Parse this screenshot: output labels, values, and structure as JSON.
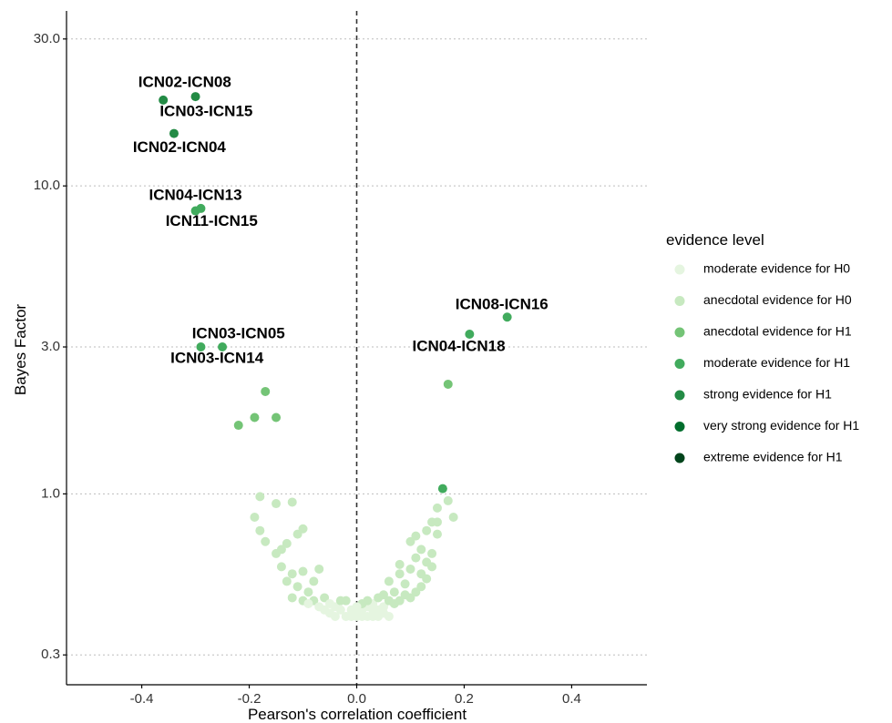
{
  "chart_data": {
    "type": "scatter",
    "xlabel": "Pearson's correlation coefficient",
    "ylabel": "Bayes Factor",
    "xlim": [
      -0.54,
      0.54
    ],
    "ylim": [
      0.24,
      37
    ],
    "y_scale": "log",
    "x_ticks": [
      -0.4,
      -0.2,
      0.0,
      0.2,
      0.4
    ],
    "x_tick_labels": [
      "-0.4",
      "-0.2",
      "0.0",
      "0.2",
      "0.4"
    ],
    "y_ticks": [
      0.3,
      1.0,
      3.0,
      10.0,
      30.0
    ],
    "y_tick_labels": [
      "0.3",
      "1.0",
      "3.0",
      "10.0",
      "30.0"
    ],
    "grid": "horizontal dotted",
    "reference_line": {
      "x": 0,
      "style": "dashed"
    },
    "legend": {
      "title": "evidence level",
      "placement": "right",
      "entries": [
        {
          "key": "mod_h0",
          "label": "moderate evidence for H0",
          "color": "#e5f5e0"
        },
        {
          "key": "anec_h0",
          "label": "anecdotal evidence for H0",
          "color": "#c7e9c0"
        },
        {
          "key": "anec_h1",
          "label": "anecdotal evidence for H1",
          "color": "#74c476"
        },
        {
          "key": "mod_h1",
          "label": "moderate evidence for H1",
          "color": "#41ab5d"
        },
        {
          "key": "strong_h1",
          "label": "strong evidence for H1",
          "color": "#238b45"
        },
        {
          "key": "vstrong_h1",
          "label": "very strong evidence for H1",
          "color": "#006d2c"
        },
        {
          "key": "ext_h1",
          "label": "extreme evidence for H1",
          "color": "#00441b"
        }
      ]
    },
    "points": [
      {
        "x": -0.36,
        "y": 19.0,
        "level": "strong_h1"
      },
      {
        "x": -0.3,
        "y": 19.5,
        "level": "strong_h1"
      },
      {
        "x": -0.34,
        "y": 14.8,
        "level": "strong_h1"
      },
      {
        "x": -0.3,
        "y": 8.3,
        "level": "mod_h1"
      },
      {
        "x": -0.29,
        "y": 8.45,
        "level": "mod_h1"
      },
      {
        "x": -0.29,
        "y": 3.0,
        "level": "mod_h1"
      },
      {
        "x": -0.25,
        "y": 3.0,
        "level": "mod_h1"
      },
      {
        "x": 0.21,
        "y": 3.3,
        "level": "mod_h1"
      },
      {
        "x": 0.28,
        "y": 3.75,
        "level": "mod_h1"
      },
      {
        "x": -0.22,
        "y": 1.67,
        "level": "anec_h1"
      },
      {
        "x": -0.19,
        "y": 1.77,
        "level": "anec_h1"
      },
      {
        "x": -0.17,
        "y": 2.15,
        "level": "anec_h1"
      },
      {
        "x": -0.15,
        "y": 1.77,
        "level": "anec_h1"
      },
      {
        "x": 0.17,
        "y": 2.27,
        "level": "anec_h1"
      },
      {
        "x": 0.16,
        "y": 1.04,
        "level": "mod_h1"
      },
      {
        "x": -0.19,
        "y": 0.84,
        "level": "anec_h0"
      },
      {
        "x": -0.18,
        "y": 0.98,
        "level": "anec_h0"
      },
      {
        "x": -0.15,
        "y": 0.93,
        "level": "anec_h0"
      },
      {
        "x": -0.12,
        "y": 0.94,
        "level": "anec_h0"
      },
      {
        "x": -0.18,
        "y": 0.76,
        "level": "anec_h0"
      },
      {
        "x": -0.17,
        "y": 0.7,
        "level": "anec_h0"
      },
      {
        "x": -0.15,
        "y": 0.64,
        "level": "anec_h0"
      },
      {
        "x": -0.14,
        "y": 0.66,
        "level": "anec_h0"
      },
      {
        "x": -0.13,
        "y": 0.69,
        "level": "anec_h0"
      },
      {
        "x": -0.11,
        "y": 0.74,
        "level": "anec_h0"
      },
      {
        "x": -0.1,
        "y": 0.77,
        "level": "anec_h0"
      },
      {
        "x": -0.14,
        "y": 0.58,
        "level": "anec_h0"
      },
      {
        "x": -0.12,
        "y": 0.55,
        "level": "anec_h0"
      },
      {
        "x": -0.1,
        "y": 0.56,
        "level": "anec_h0"
      },
      {
        "x": -0.07,
        "y": 0.57,
        "level": "anec_h0"
      },
      {
        "x": -0.13,
        "y": 0.52,
        "level": "anec_h0"
      },
      {
        "x": -0.11,
        "y": 0.5,
        "level": "anec_h0"
      },
      {
        "x": -0.09,
        "y": 0.48,
        "level": "anec_h0"
      },
      {
        "x": -0.12,
        "y": 0.46,
        "level": "anec_h0"
      },
      {
        "x": -0.1,
        "y": 0.45,
        "level": "anec_h0"
      },
      {
        "x": -0.08,
        "y": 0.52,
        "level": "anec_h0"
      },
      {
        "x": -0.08,
        "y": 0.45,
        "level": "anec_h0"
      },
      {
        "x": -0.06,
        "y": 0.46,
        "level": "anec_h0"
      },
      {
        "x": -0.09,
        "y": 0.44,
        "level": "mod_h0"
      },
      {
        "x": -0.07,
        "y": 0.43,
        "level": "mod_h0"
      },
      {
        "x": -0.05,
        "y": 0.44,
        "level": "mod_h0"
      },
      {
        "x": -0.06,
        "y": 0.42,
        "level": "mod_h0"
      },
      {
        "x": -0.04,
        "y": 0.43,
        "level": "mod_h0"
      },
      {
        "x": -0.03,
        "y": 0.45,
        "level": "anec_h0"
      },
      {
        "x": -0.02,
        "y": 0.45,
        "level": "anec_h0"
      },
      {
        "x": -0.03,
        "y": 0.42,
        "level": "mod_h0"
      },
      {
        "x": -0.01,
        "y": 0.42,
        "level": "mod_h0"
      },
      {
        "x": -0.04,
        "y": 0.4,
        "level": "mod_h0"
      },
      {
        "x": -0.02,
        "y": 0.4,
        "level": "mod_h0"
      },
      {
        "x": 0.0,
        "y": 0.4,
        "level": "mod_h0"
      },
      {
        "x": -0.05,
        "y": 0.41,
        "level": "mod_h0"
      },
      {
        "x": 0.01,
        "y": 0.42,
        "level": "mod_h0"
      },
      {
        "x": 0.02,
        "y": 0.43,
        "level": "mod_h0"
      },
      {
        "x": 0.02,
        "y": 0.4,
        "level": "mod_h0"
      },
      {
        "x": 0.03,
        "y": 0.42,
        "level": "mod_h0"
      },
      {
        "x": 0.03,
        "y": 0.44,
        "level": "mod_h0"
      },
      {
        "x": 0.04,
        "y": 0.4,
        "level": "mod_h0"
      },
      {
        "x": 0.04,
        "y": 0.42,
        "level": "mod_h0"
      },
      {
        "x": 0.05,
        "y": 0.43,
        "level": "mod_h0"
      },
      {
        "x": 0.05,
        "y": 0.41,
        "level": "mod_h0"
      },
      {
        "x": 0.06,
        "y": 0.4,
        "level": "mod_h0"
      },
      {
        "x": 0.01,
        "y": 0.44,
        "level": "anec_h0"
      },
      {
        "x": 0.02,
        "y": 0.45,
        "level": "anec_h0"
      },
      {
        "x": 0.04,
        "y": 0.46,
        "level": "anec_h0"
      },
      {
        "x": 0.05,
        "y": 0.47,
        "level": "anec_h0"
      },
      {
        "x": 0.06,
        "y": 0.45,
        "level": "anec_h0"
      },
      {
        "x": 0.07,
        "y": 0.44,
        "level": "anec_h0"
      },
      {
        "x": 0.07,
        "y": 0.48,
        "level": "anec_h0"
      },
      {
        "x": 0.08,
        "y": 0.45,
        "level": "anec_h0"
      },
      {
        "x": 0.09,
        "y": 0.47,
        "level": "anec_h0"
      },
      {
        "x": 0.1,
        "y": 0.46,
        "level": "anec_h0"
      },
      {
        "x": 0.06,
        "y": 0.52,
        "level": "anec_h0"
      },
      {
        "x": 0.08,
        "y": 0.55,
        "level": "anec_h0"
      },
      {
        "x": 0.09,
        "y": 0.51,
        "level": "anec_h0"
      },
      {
        "x": 0.11,
        "y": 0.48,
        "level": "anec_h0"
      },
      {
        "x": 0.12,
        "y": 0.5,
        "level": "anec_h0"
      },
      {
        "x": 0.08,
        "y": 0.59,
        "level": "anec_h0"
      },
      {
        "x": 0.1,
        "y": 0.57,
        "level": "anec_h0"
      },
      {
        "x": 0.12,
        "y": 0.55,
        "level": "anec_h0"
      },
      {
        "x": 0.13,
        "y": 0.53,
        "level": "anec_h0"
      },
      {
        "x": 0.11,
        "y": 0.62,
        "level": "anec_h0"
      },
      {
        "x": 0.13,
        "y": 0.6,
        "level": "anec_h0"
      },
      {
        "x": 0.14,
        "y": 0.58,
        "level": "anec_h0"
      },
      {
        "x": 0.12,
        "y": 0.66,
        "level": "anec_h0"
      },
      {
        "x": 0.14,
        "y": 0.64,
        "level": "anec_h0"
      },
      {
        "x": 0.1,
        "y": 0.7,
        "level": "anec_h0"
      },
      {
        "x": 0.11,
        "y": 0.73,
        "level": "anec_h0"
      },
      {
        "x": 0.13,
        "y": 0.76,
        "level": "anec_h0"
      },
      {
        "x": 0.15,
        "y": 0.74,
        "level": "anec_h0"
      },
      {
        "x": 0.14,
        "y": 0.81,
        "level": "anec_h0"
      },
      {
        "x": 0.15,
        "y": 0.9,
        "level": "anec_h0"
      },
      {
        "x": 0.17,
        "y": 0.95,
        "level": "anec_h0"
      },
      {
        "x": 0.18,
        "y": 0.84,
        "level": "anec_h0"
      },
      {
        "x": 0.15,
        "y": 0.81,
        "level": "anec_h0"
      },
      {
        "x": 0.0,
        "y": 0.43,
        "level": "mod_h0"
      },
      {
        "x": 0.0,
        "y": 0.41,
        "level": "mod_h0"
      },
      {
        "x": 0.01,
        "y": 0.4,
        "level": "mod_h0"
      },
      {
        "x": 0.03,
        "y": 0.4,
        "level": "mod_h0"
      },
      {
        "x": -0.01,
        "y": 0.4,
        "level": "mod_h0"
      }
    ],
    "annotations": [
      {
        "text": "ICN02-ICN08",
        "x": -0.32,
        "y": 21.6
      },
      {
        "text": "ICN03-ICN15",
        "x": -0.28,
        "y": 17.4
      },
      {
        "text": "ICN02-ICN04",
        "x": -0.33,
        "y": 13.3
      },
      {
        "text": "ICN04-ICN13",
        "x": -0.3,
        "y": 9.3
      },
      {
        "text": "ICN11-ICN15",
        "x": -0.27,
        "y": 7.65
      },
      {
        "text": "ICN03-ICN05",
        "x": -0.22,
        "y": 3.3
      },
      {
        "text": "ICN03-ICN14",
        "x": -0.26,
        "y": 2.75
      },
      {
        "text": "ICN08-ICN16",
        "x": 0.27,
        "y": 4.1
      },
      {
        "text": "ICN04-ICN18",
        "x": 0.19,
        "y": 3.0
      }
    ]
  }
}
